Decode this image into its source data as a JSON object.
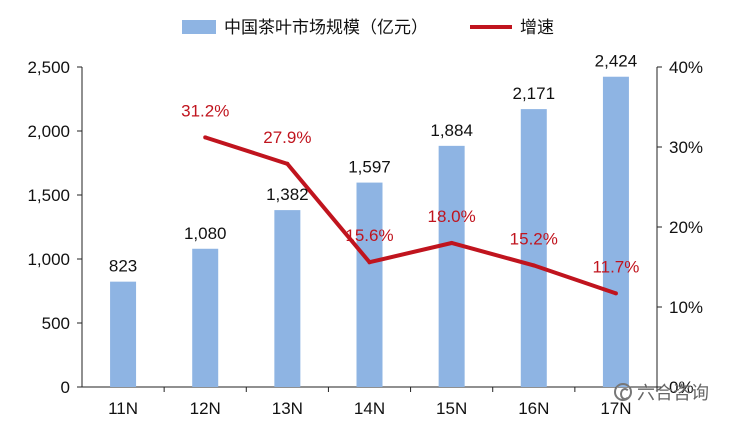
{
  "chart_data": {
    "type": "bar",
    "categories": [
      "11N",
      "12N",
      "13N",
      "14N",
      "15N",
      "16N",
      "17N"
    ],
    "series": [
      {
        "name": "中国茶叶市场规模（亿元）",
        "type": "bar",
        "axis": "left",
        "color": "#8eb4e3",
        "values": [
          823,
          1080,
          1382,
          1597,
          1884,
          2171,
          2424
        ],
        "labels": [
          "823",
          "1,080",
          "1,382",
          "1,597",
          "1,884",
          "2,171",
          "2,424"
        ]
      },
      {
        "name": "增速",
        "type": "line",
        "axis": "right",
        "color": "#c0141e",
        "values": [
          null,
          31.2,
          27.9,
          15.6,
          18.0,
          15.2,
          11.7
        ],
        "labels": [
          "",
          "31.2%",
          "27.9%",
          "15.6%",
          "18.0%",
          "15.2%",
          "11.7%"
        ]
      }
    ],
    "y_left": {
      "ylim": [
        0,
        2500
      ],
      "ticks": [
        "0",
        "500",
        "1,000",
        "1,500",
        "2,000",
        "2,500"
      ]
    },
    "y_right": {
      "ylim": [
        0,
        40
      ],
      "ticks": [
        "0%",
        "10%",
        "20%",
        "30%",
        "40%"
      ]
    },
    "legend": "top-center",
    "grid": false
  },
  "watermark": {
    "text": "六合咨询",
    "icon": "wechat-icon"
  }
}
